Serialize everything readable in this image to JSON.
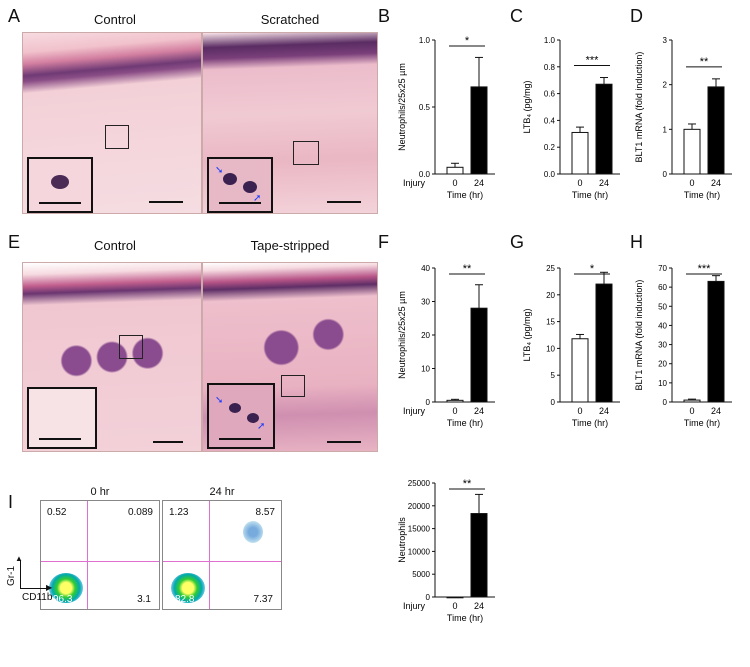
{
  "panels": {
    "A": {
      "letter": "A",
      "titles": [
        "Control",
        "Scratched"
      ]
    },
    "E": {
      "letter": "E",
      "titles": [
        "Control",
        "Tape-stripped"
      ]
    },
    "I": {
      "letter": "I",
      "titles": [
        "0 hr",
        "24 hr"
      ],
      "quadrants_0hr": [
        "0.52",
        "0.089",
        "3.1",
        "96.3"
      ],
      "quadrants_24hr": [
        "1.23",
        "8.57",
        "7.37",
        "82.8"
      ],
      "ylabel": "Gr-1",
      "xlabel": "CD11b"
    }
  },
  "chart_data": [
    {
      "id": "B",
      "type": "bar",
      "categories": [
        "0",
        "24"
      ],
      "values": [
        0.05,
        0.65
      ],
      "errors": [
        0.03,
        0.22
      ],
      "ylabel": "Neutrophils/25x25 µm",
      "ylim": [
        0,
        1.0
      ],
      "yticks": [
        "0.0",
        "0.5",
        "1.0"
      ],
      "xlabel": "Time (hr)",
      "row_label": "Injury",
      "significance": "*"
    },
    {
      "id": "C",
      "type": "bar",
      "categories": [
        "0",
        "24"
      ],
      "values": [
        0.31,
        0.67
      ],
      "errors": [
        0.04,
        0.05
      ],
      "ylabel": "LTB₄ (pg/mg)",
      "ylim": [
        0,
        1.0
      ],
      "yticks": [
        "0.0",
        "0.2",
        "0.4",
        "0.6",
        "0.8",
        "1.0"
      ],
      "xlabel": "Time (hr)",
      "row_label": "",
      "significance": "***"
    },
    {
      "id": "D",
      "type": "bar",
      "categories": [
        "0",
        "24"
      ],
      "values": [
        1.0,
        1.95
      ],
      "errors": [
        0.12,
        0.18
      ],
      "ylabel": "BLT1 mRNA (fold induction)",
      "ylim": [
        0,
        3
      ],
      "yticks": [
        "0",
        "1",
        "2",
        "3"
      ],
      "xlabel": "Time (hr)",
      "row_label": "",
      "significance": "**"
    },
    {
      "id": "F",
      "type": "bar",
      "categories": [
        "0",
        "24"
      ],
      "values": [
        0.5,
        28
      ],
      "errors": [
        0.3,
        7
      ],
      "ylabel": "Neutrophils/25x25 µm",
      "ylim": [
        0,
        40
      ],
      "yticks": [
        "0",
        "10",
        "20",
        "30",
        "40"
      ],
      "xlabel": "Time (hr)",
      "row_label": "Injury",
      "significance": "**"
    },
    {
      "id": "G",
      "type": "bar",
      "categories": [
        "0",
        "24"
      ],
      "values": [
        11.8,
        22
      ],
      "errors": [
        0.8,
        2.2
      ],
      "ylabel": "LTB₄ (pg/mg)",
      "ylim": [
        0,
        25
      ],
      "yticks": [
        "0",
        "5",
        "10",
        "15",
        "20",
        "25"
      ],
      "xlabel": "Time (hr)",
      "row_label": "",
      "significance": "*"
    },
    {
      "id": "H",
      "type": "bar",
      "categories": [
        "0",
        "24"
      ],
      "values": [
        1,
        63
      ],
      "errors": [
        0.5,
        3
      ],
      "ylabel": "BLT1 mRNA (fold induction)",
      "ylim": [
        0,
        70
      ],
      "yticks": [
        "0",
        "10",
        "20",
        "30",
        "40",
        "50",
        "60",
        "70"
      ],
      "xlabel": "Time (hr)",
      "row_label": "",
      "significance": "***"
    },
    {
      "id": "I2",
      "type": "bar",
      "categories": [
        "0",
        "24"
      ],
      "values": [
        0,
        18300
      ],
      "errors": [
        0,
        4200
      ],
      "ylabel": "Neutrophils",
      "ylim": [
        0,
        25000
      ],
      "yticks": [
        "0",
        "5000",
        "10000",
        "15000",
        "20000",
        "25000"
      ],
      "xlabel": "Time (hr)",
      "row_label": "Injury",
      "significance": "**"
    }
  ],
  "colors": {
    "control_bar": "#ffffff",
    "treated_bar": "#000000",
    "he_pink": "#f2c6d0",
    "epidermis": "#5b2a63",
    "gate_line": "#e070d0"
  }
}
